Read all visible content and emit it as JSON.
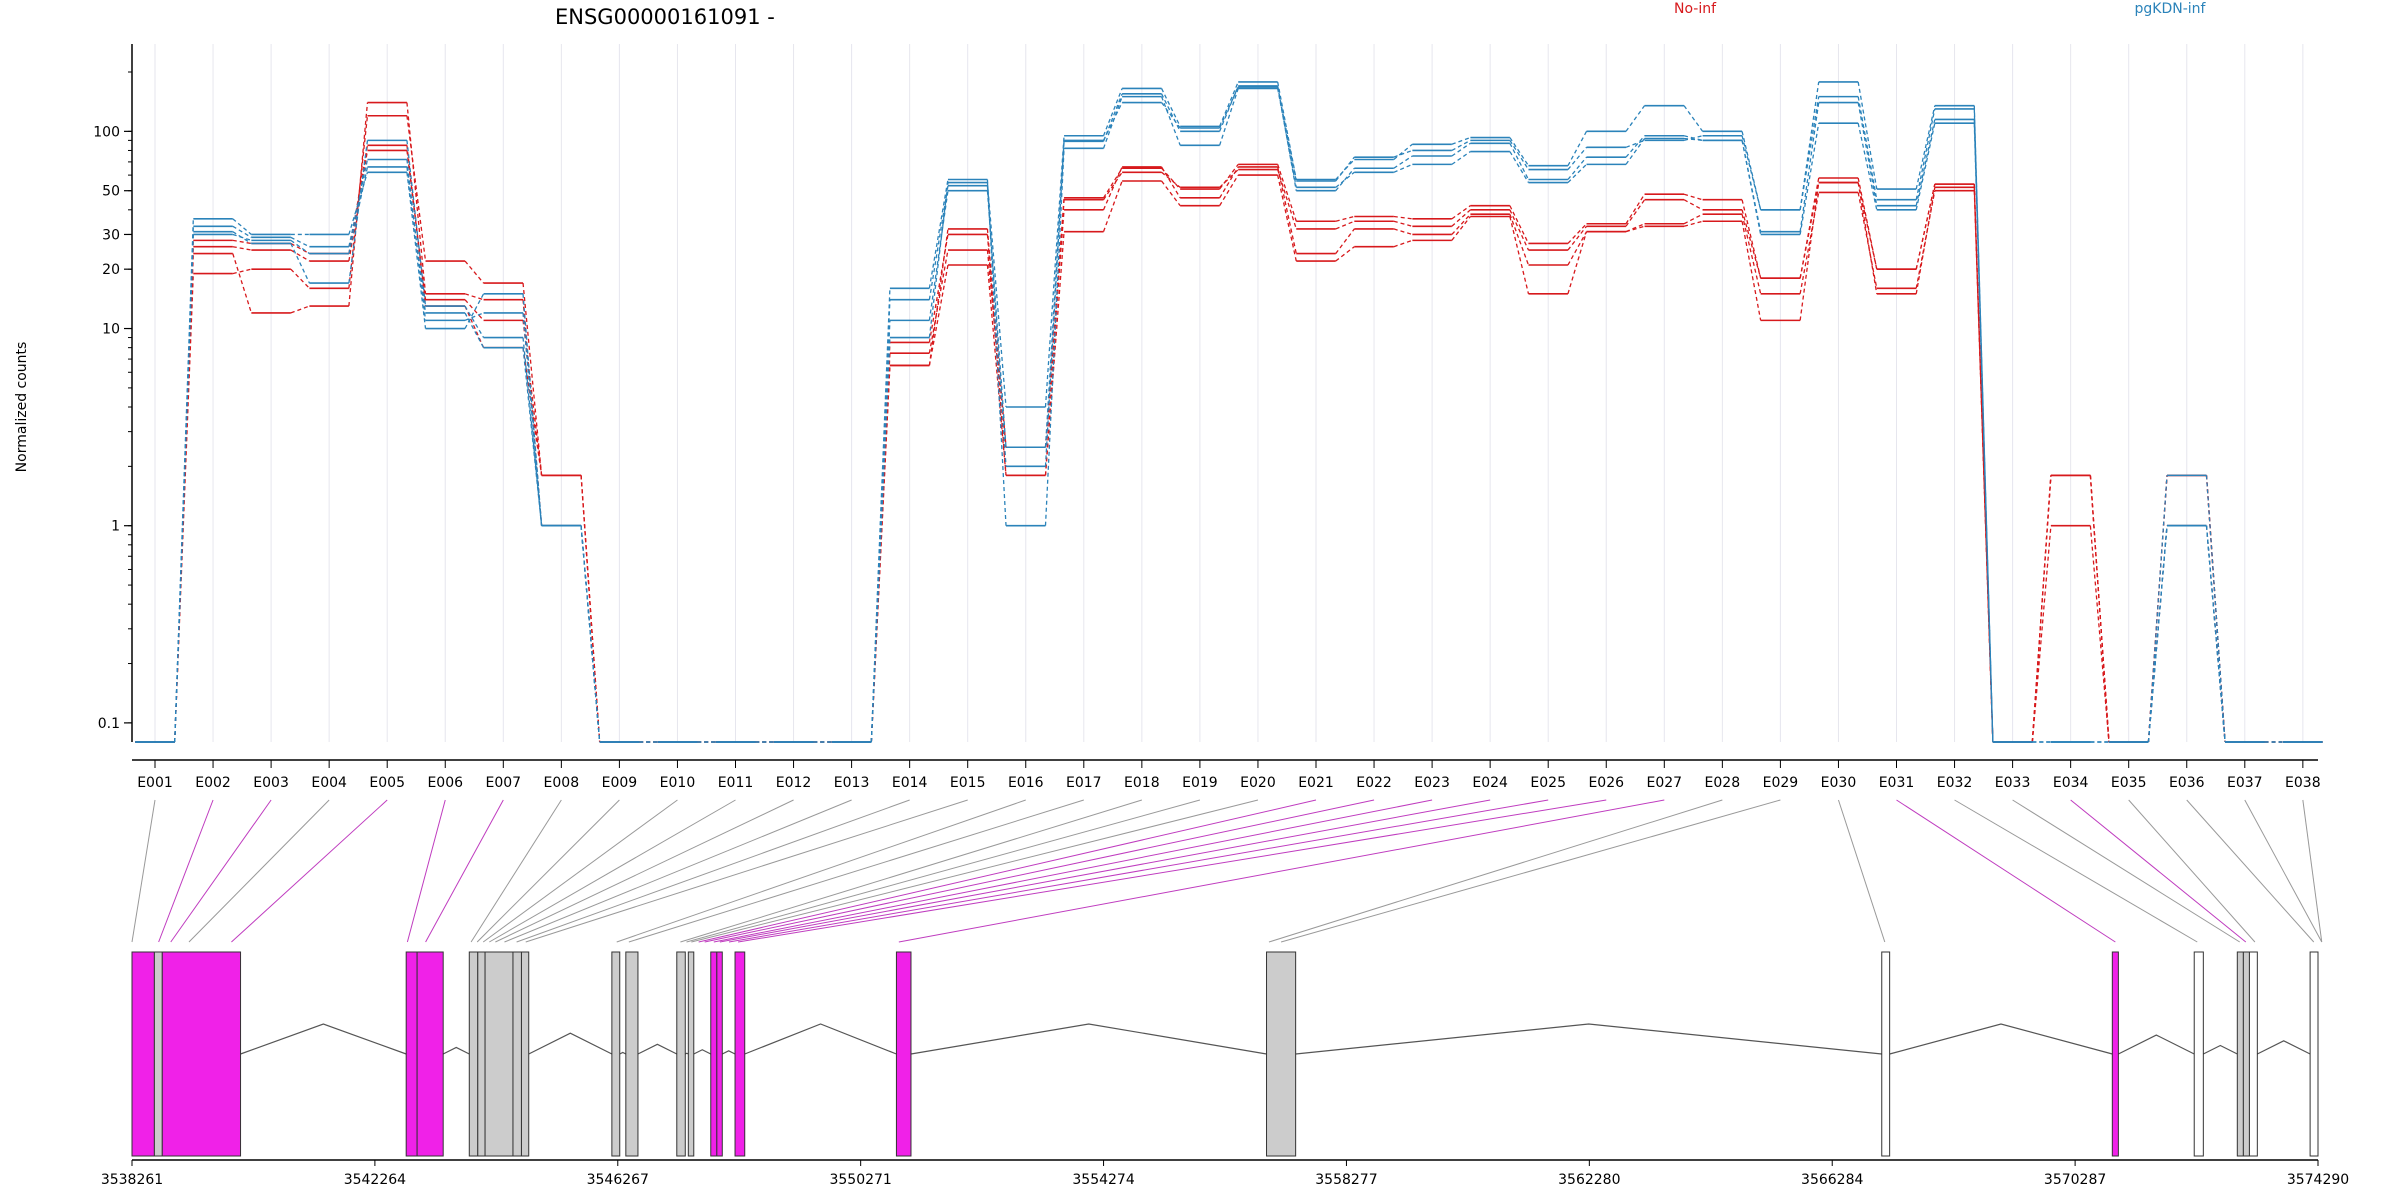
{
  "chart_data": {
    "type": "line",
    "title": "ENSG00000161091 -",
    "ylabel": "Normalized counts",
    "y_scale": "log",
    "ylim": [
      0.08,
      200
    ],
    "y_ticks": [
      {
        "v": 0.1,
        "label": "0.1"
      },
      {
        "v": 1,
        "label": "1"
      },
      {
        "v": 10,
        "label": "10"
      },
      {
        "v": 20,
        "label": "20"
      },
      {
        "v": 30,
        "label": "30"
      },
      {
        "v": 50,
        "label": "50"
      },
      {
        "v": 100,
        "label": "100"
      }
    ],
    "categories": [
      "E001",
      "E002",
      "E003",
      "E004",
      "E005",
      "E006",
      "E007",
      "E008",
      "E009",
      "E010",
      "E011",
      "E012",
      "E013",
      "E014",
      "E015",
      "E016",
      "E017",
      "E018",
      "E019",
      "E020",
      "E021",
      "E022",
      "E023",
      "E024",
      "E025",
      "E026",
      "E027",
      "E028",
      "E029",
      "E030",
      "E031",
      "E032",
      "E033",
      "E034",
      "E035",
      "E036",
      "E037",
      "E038"
    ],
    "legend": [
      {
        "name": "No-inf",
        "color": "#d7191c"
      },
      {
        "name": "pgKDN-inf",
        "color": "#2b83ba"
      }
    ],
    "grid": "vertical",
    "series": [
      {
        "name": "No-inf",
        "color": "#d7191c",
        "values": [
          0.08,
          19,
          20,
          16,
          120,
          22,
          17,
          1.8,
          0.08,
          0.08,
          0.08,
          0.08,
          0.08,
          6.5,
          21,
          1.8,
          31,
          56,
          42,
          60,
          22,
          26,
          28,
          37,
          15,
          31,
          33,
          35,
          11,
          55,
          15,
          52,
          0.08,
          1.8,
          0.08,
          1.8,
          0.08,
          0.08
        ]
      },
      {
        "name": "No-inf",
        "color": "#d7191c",
        "values": [
          0.08,
          24,
          12,
          13,
          140,
          15,
          14,
          1.0,
          0.08,
          0.08,
          0.08,
          0.08,
          0.08,
          7.5,
          25,
          2.5,
          40,
          66,
          46,
          66,
          24,
          32,
          30,
          38,
          21,
          31,
          34,
          38,
          15,
          49,
          16,
          50,
          0.08,
          1.0,
          0.08,
          1.0,
          0.08,
          0.08
        ]
      },
      {
        "name": "No-inf",
        "color": "#d7191c",
        "values": [
          0.08,
          26,
          25,
          22,
          80,
          14,
          11,
          1.8,
          0.08,
          0.08,
          0.08,
          0.08,
          0.08,
          8.5,
          30,
          1.8,
          45,
          62,
          52,
          64,
          32,
          35,
          33,
          40,
          25,
          33,
          45,
          40,
          18,
          58,
          20,
          54,
          0.08,
          1.8,
          0.08,
          1.8,
          0.08,
          0.08
        ]
      },
      {
        "name": "No-inf",
        "color": "#d7191c",
        "values": [
          0.08,
          28,
          27,
          24,
          85,
          13,
          8,
          1.8,
          0.08,
          0.08,
          0.08,
          0.08,
          0.08,
          6.5,
          32,
          2.5,
          46,
          65,
          51,
          68,
          35,
          37,
          36,
          42,
          27,
          34,
          48,
          45,
          18,
          55,
          20,
          54,
          0.08,
          1.8,
          0.08,
          1.8,
          0.08,
          0.08
        ]
      },
      {
        "name": "pgKDN-inf",
        "color": "#2b83ba",
        "values": [
          0.08,
          36,
          30,
          30,
          62,
          10,
          15,
          1.0,
          0.08,
          0.08,
          0.08,
          0.08,
          0.08,
          16,
          57,
          1.0,
          82,
          150,
          85,
          165,
          52,
          62,
          68,
          79,
          55,
          68,
          92,
          90,
          30,
          110,
          40,
          110,
          0.08,
          0.08,
          0.08,
          1.0,
          0.08,
          0.08
        ]
      },
      {
        "name": "pgKDN-inf",
        "color": "#2b83ba",
        "values": [
          0.08,
          33,
          29,
          26,
          72,
          11,
          12,
          1.0,
          0.08,
          0.08,
          0.08,
          0.08,
          0.08,
          11,
          50,
          2.5,
          89,
          155,
          100,
          170,
          50,
          65,
          75,
          87,
          57,
          74,
          95,
          90,
          31,
          140,
          42,
          115,
          0.08,
          0.08,
          0.08,
          1.0,
          0.08,
          0.08
        ]
      },
      {
        "name": "pgKDN-inf",
        "color": "#2b83ba",
        "values": [
          0.08,
          30,
          28,
          24,
          66,
          12,
          8,
          1.0,
          0.08,
          0.08,
          0.08,
          0.08,
          0.08,
          14,
          53,
          2.0,
          90,
          140,
          104,
          168,
          56,
          74,
          80,
          90,
          64,
          83,
          90,
          95,
          40,
          150,
          45,
          130,
          0.08,
          0.08,
          0.08,
          1.8,
          0.08,
          0.08
        ]
      },
      {
        "name": "pgKDN-inf",
        "color": "#2b83ba",
        "values": [
          0.08,
          31,
          27,
          17,
          90,
          13,
          9,
          1.0,
          0.08,
          0.08,
          0.08,
          0.08,
          0.08,
          9,
          55,
          4.0,
          95,
          165,
          106,
          178,
          57,
          72,
          86,
          93,
          67,
          100,
          135,
          100,
          40,
          178,
          51,
          135,
          0.08,
          0.08,
          0.08,
          1.0,
          0.08,
          0.08
        ]
      }
    ]
  },
  "gene_model": {
    "coordinate_labels": [
      "3538261",
      "3542264",
      "3546267",
      "3550271",
      "3554274",
      "3558277",
      "3562280",
      "3566284",
      "3570287",
      "3574290"
    ],
    "colors": {
      "significant": "#f021e8",
      "normal": "#cccccc",
      "noncoding": "#ffffff",
      "significant_line": "#bf3cbf",
      "normal_line": "#999999"
    }
  }
}
